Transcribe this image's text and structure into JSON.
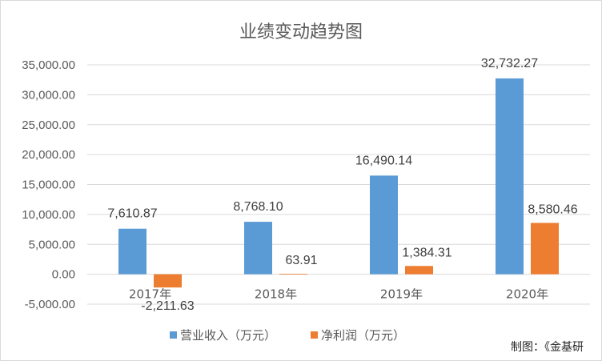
{
  "chart_data": {
    "type": "bar",
    "title": "业绩变动趋势图",
    "categories": [
      "2017年",
      "2018年",
      "2019年",
      "2020年"
    ],
    "series": [
      {
        "name": "营业收入（万元）",
        "values": [
          7610.87,
          8768.1,
          16490.14,
          32732.27
        ],
        "color": "#5B9BD5"
      },
      {
        "name": "净利润（万元）",
        "values": [
          -2211.63,
          63.91,
          1384.31,
          8580.46
        ],
        "color": "#ED7D31"
      }
    ],
    "data_labels": [
      [
        "7,610.87",
        "8,768.10",
        "16,490.14",
        "32,732.27"
      ],
      [
        "-2,211.63",
        "63.91",
        "1,384.31",
        "8,580.46"
      ]
    ],
    "ytick_labels": [
      "-5,000.00",
      "0.00",
      "5,000.00",
      "10,000.00",
      "15,000.00",
      "20,000.00",
      "25,000.00",
      "30,000.00",
      "35,000.00"
    ],
    "ylim": [
      -5000,
      35000
    ],
    "ystep": 5000,
    "grid": true,
    "legend_position": "bottom"
  },
  "credit": "制图：《金基研"
}
